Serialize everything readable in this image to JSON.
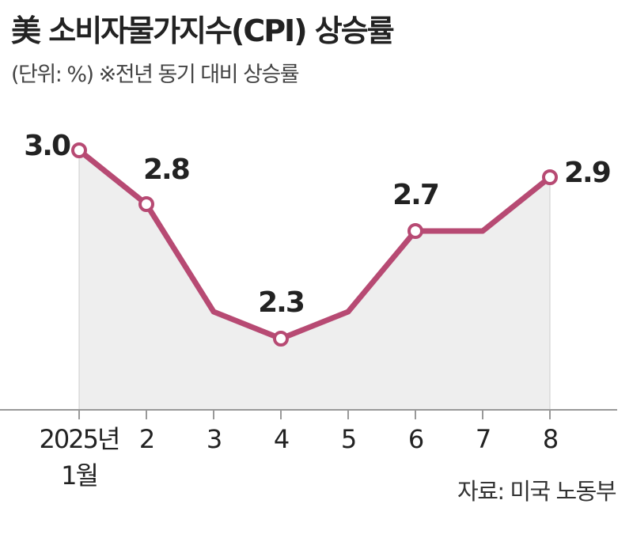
{
  "chart_data": {
    "type": "line",
    "title": "美 소비자물가지수(CPI) 상승률",
    "subtitle": "(단위: %) ※전년 동기 대비 상승률",
    "source": "자료: 미국 노동부",
    "categories": [
      "2025년\n1월",
      "2",
      "3",
      "4",
      "5",
      "6",
      "7",
      "8"
    ],
    "series": [
      {
        "name": "CPI 상승률",
        "color": "#b74a73",
        "values": [
          3.0,
          2.8,
          2.4,
          2.3,
          2.4,
          2.7,
          2.7,
          2.9
        ],
        "value_labels": [
          "3.0",
          "2.8",
          null,
          "2.3",
          null,
          "2.7",
          null,
          "2.9"
        ]
      }
    ],
    "ylim": [
      2.0,
      3.0
    ],
    "area_color": "#eeeeee"
  }
}
